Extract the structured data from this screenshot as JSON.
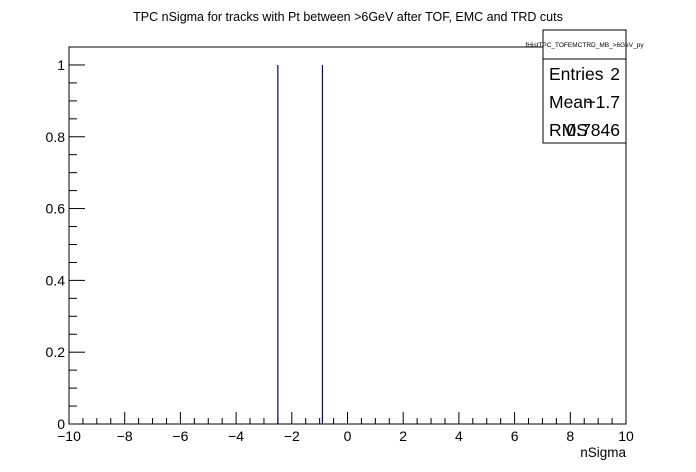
{
  "chart_data": {
    "type": "bar",
    "title": "TPC nSigma for tracks with Pt between >6GeV after TOF, EMC and TRD cuts",
    "xlabel": "nSigma",
    "ylabel": "",
    "xlim": [
      -10,
      10
    ],
    "ylim": [
      0,
      1.05
    ],
    "x_ticks": [
      "−10",
      "−8",
      "−6",
      "−4",
      "−2",
      "0",
      "2",
      "4",
      "6",
      "8",
      "10"
    ],
    "y_ticks": [
      "0",
      "0.2",
      "0.4",
      "0.6",
      "0.8",
      "1"
    ],
    "series_color": "#000080",
    "entries": [
      {
        "x": -2.5,
        "y": 1
      },
      {
        "x": -0.9,
        "y": 1
      }
    ],
    "grid": false,
    "stats_box": {
      "name": "fHistTPC_TOFEMCTRD_MB_>6GeV_py",
      "rows": [
        {
          "label": "Entries",
          "value": "2"
        },
        {
          "label": "Mean",
          "value": "−1.7"
        },
        {
          "label": "RMS",
          "value": "0.7846"
        }
      ]
    }
  }
}
